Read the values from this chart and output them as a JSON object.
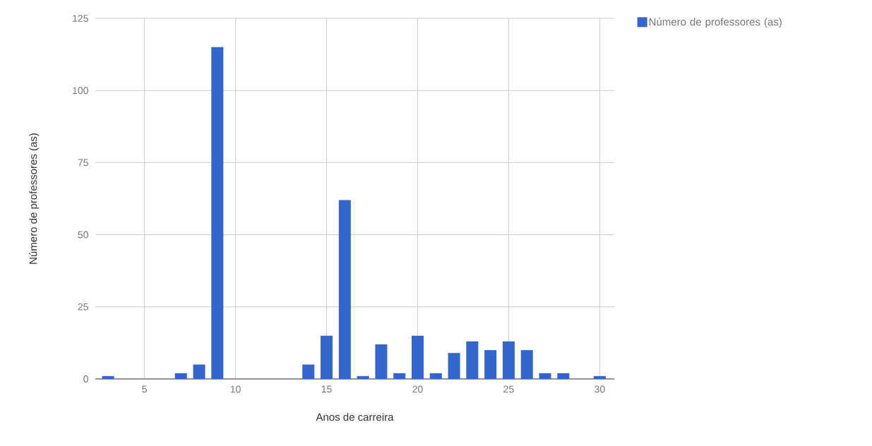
{
  "chart_data": {
    "type": "bar",
    "xlabel": "Anos de carreira",
    "ylabel": "Número de professores (as)",
    "x": [
      3,
      7,
      8,
      9,
      14,
      15,
      16,
      17,
      18,
      19,
      20,
      21,
      22,
      23,
      24,
      25,
      26,
      27,
      28,
      30
    ],
    "series": [
      {
        "name": "Número de professores (as)",
        "color": "#3366cc",
        "values": [
          1,
          2,
          5,
          115,
          5,
          15,
          62,
          1,
          12,
          2,
          15,
          2,
          9,
          13,
          10,
          13,
          10,
          2,
          2,
          1
        ]
      }
    ],
    "xlim": [
      2.3,
      30.8
    ],
    "xticks": [
      5,
      10,
      15,
      20,
      25,
      30
    ],
    "ylim": [
      0,
      125
    ],
    "yticks": [
      0,
      25,
      50,
      75,
      100,
      125
    ],
    "grid": true,
    "legend": "top right"
  }
}
